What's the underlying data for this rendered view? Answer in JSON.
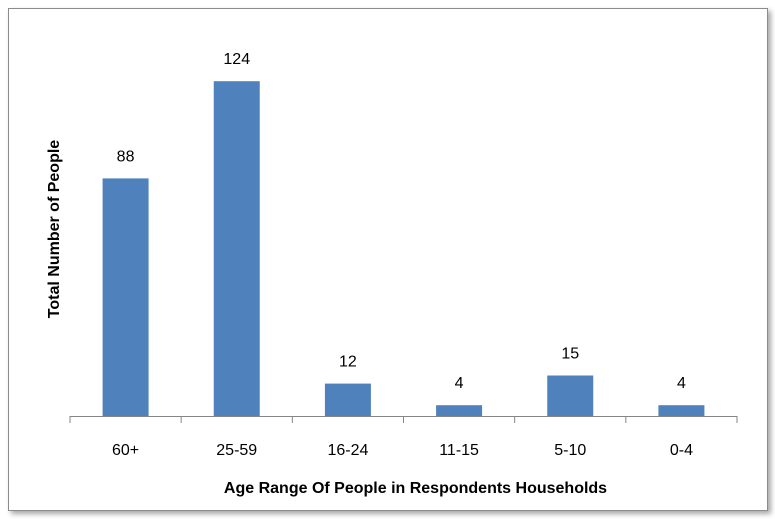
{
  "chart_data": {
    "type": "bar",
    "categories": [
      "60+",
      "25-59",
      "16-24",
      "11-15",
      "5-10",
      "0-4"
    ],
    "values": [
      88,
      124,
      12,
      4,
      15,
      4
    ],
    "data_labels": [
      "88",
      "124",
      "12",
      "4",
      "15",
      "4"
    ],
    "title": "",
    "xlabel": "Age Range Of People in Respondents Households",
    "ylabel": "Total Number of People",
    "ylim": [
      0,
      124
    ],
    "grid": false,
    "legend": "none",
    "bar_color": "#4f81bd",
    "axis_color": "#868686"
  }
}
